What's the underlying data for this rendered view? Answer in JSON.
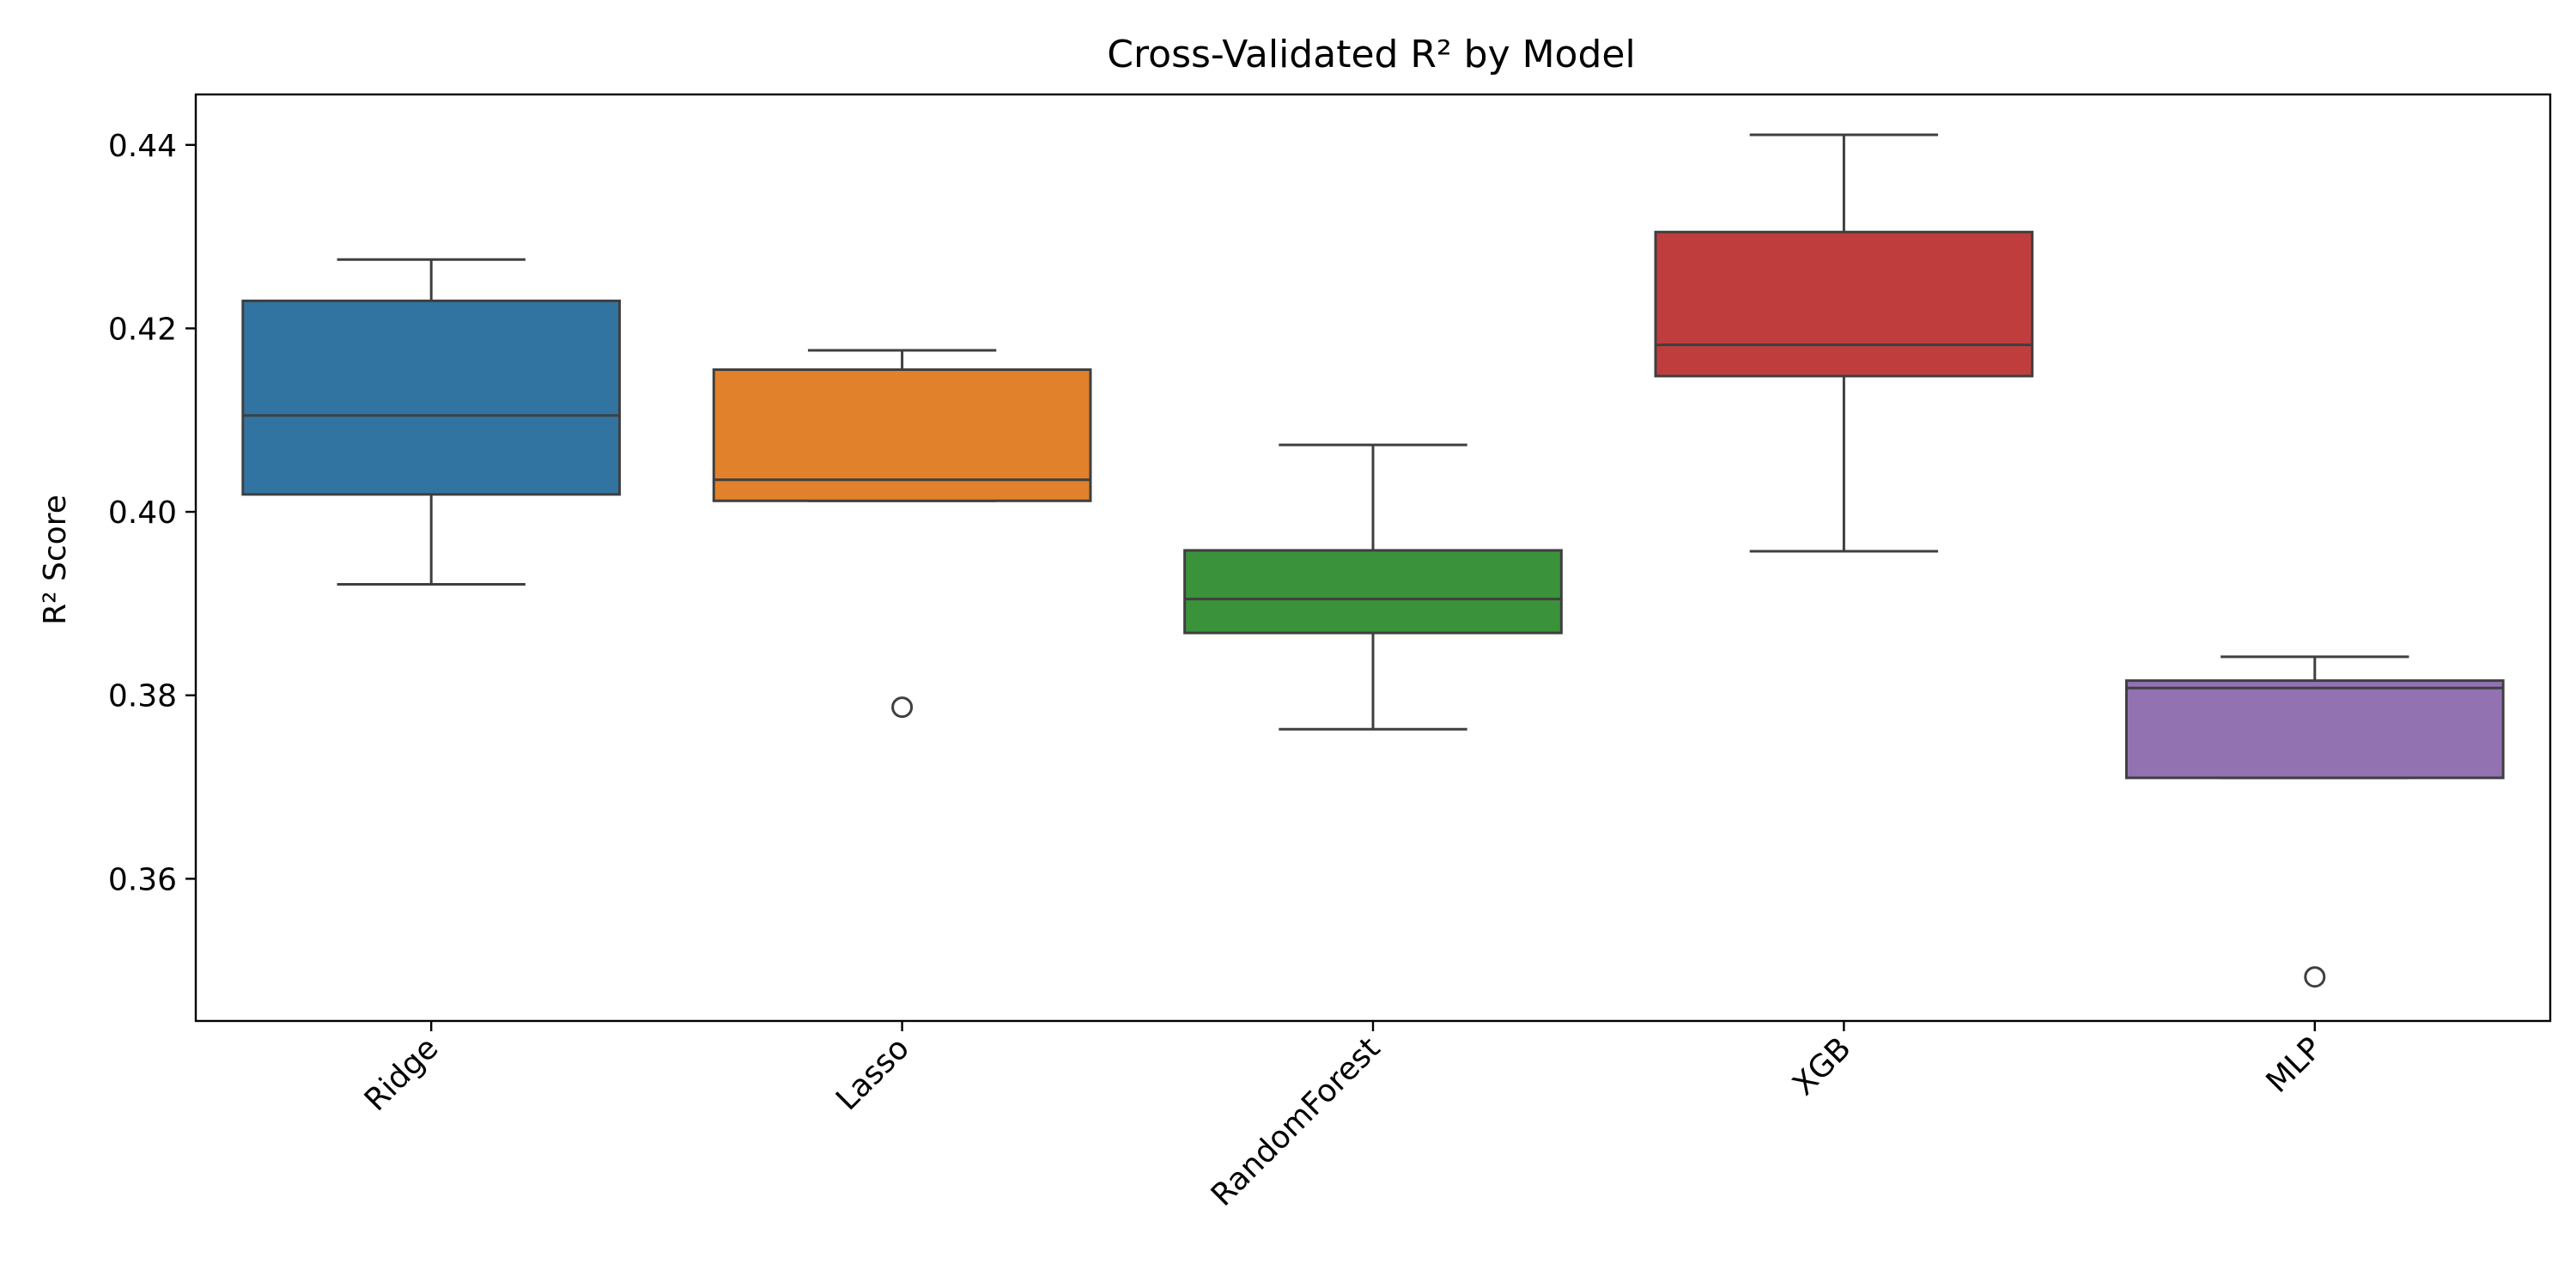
{
  "chart_data": {
    "type": "box",
    "title": "Cross-Validated R² by Model",
    "xlabel": "",
    "ylabel": "R² Score",
    "ylim": [
      0.3445,
      0.4455
    ],
    "yticks": [
      0.36,
      0.38,
      0.4,
      0.42,
      0.44
    ],
    "ytick_labels": [
      "0.36",
      "0.38",
      "0.40",
      "0.42",
      "0.44"
    ],
    "grid": false,
    "categories": [
      "Ridge",
      "Lasso",
      "RandomForest",
      "XGB",
      "MLP"
    ],
    "boxes": [
      {
        "label": "Ridge",
        "color": "#3274a1",
        "whisker_low": 0.3921,
        "q1": 0.4019,
        "median": 0.4105,
        "q3": 0.423,
        "whisker_high": 0.4275,
        "outliers": []
      },
      {
        "label": "Lasso",
        "color": "#e1812c",
        "whisker_low": 0.4012,
        "q1": 0.4012,
        "median": 0.4035,
        "q3": 0.4155,
        "whisker_high": 0.4176,
        "outliers": [
          0.3787
        ]
      },
      {
        "label": "RandomForest",
        "color": "#3a923a",
        "whisker_low": 0.3763,
        "q1": 0.3868,
        "median": 0.3905,
        "q3": 0.3958,
        "whisker_high": 0.4073,
        "outliers": []
      },
      {
        "label": "XGB",
        "color": "#c03d3e",
        "whisker_low": 0.3957,
        "q1": 0.4148,
        "median": 0.4182,
        "q3": 0.4305,
        "whisker_high": 0.4411,
        "outliers": []
      },
      {
        "label": "MLP",
        "color": "#9372b2",
        "whisker_low": 0.371,
        "q1": 0.371,
        "median": 0.3808,
        "q3": 0.3816,
        "whisker_high": 0.3842,
        "outliers": [
          0.3493
        ]
      }
    ]
  }
}
